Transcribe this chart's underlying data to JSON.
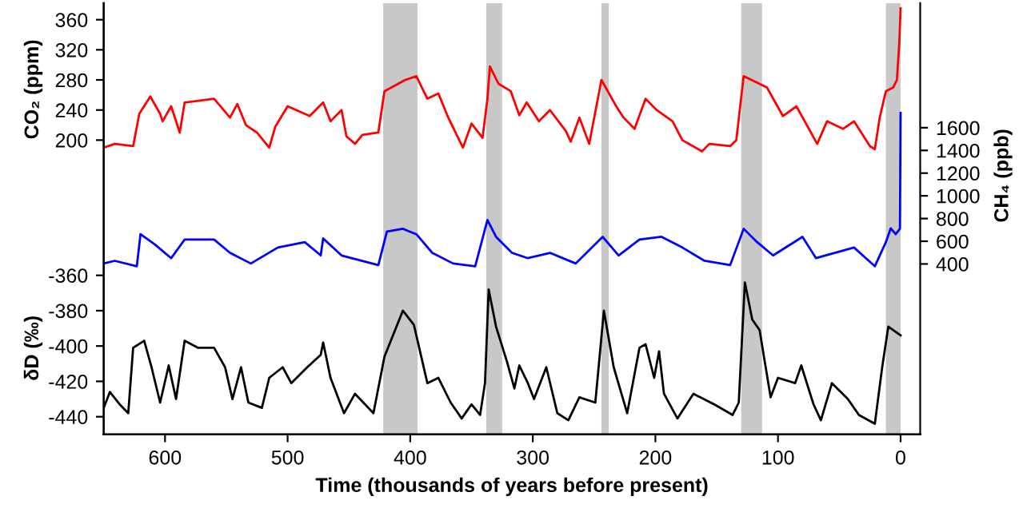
{
  "chart_data": {
    "type": "line",
    "xlabel": "Time (thousands of years before present)",
    "ylabel": "CO₂ (ppm)",
    "y2label": "CH₄ (ppb)",
    "y3label": "δD (‰)",
    "xlim": [
      650,
      -16
    ],
    "xticks": [
      600,
      500,
      400,
      300,
      200,
      100,
      0
    ],
    "ylim": [
      -191,
      382
    ],
    "yticks": [
      200,
      240,
      280,
      320,
      360
    ],
    "y2lim": [
      -1101,
      2697
    ],
    "y2ticks": [
      400,
      600,
      800,
      1000,
      1200,
      1400,
      1600
    ],
    "y3lim": [
      -450,
      -206
    ],
    "y3ticks": [
      -440,
      -420,
      -400,
      -380,
      -360
    ],
    "grid": false,
    "legend": false,
    "bands": [
      {
        "axis": "x",
        "from": 422,
        "to": 394,
        "color": "#c8c8c8"
      },
      {
        "axis": "x",
        "from": 338,
        "to": 325,
        "color": "#c8c8c8"
      },
      {
        "axis": "x",
        "from": 244,
        "to": 238,
        "color": "#c8c8c8"
      },
      {
        "axis": "x",
        "from": 130,
        "to": 113,
        "color": "#c8c8c8"
      },
      {
        "axis": "x",
        "from": 12,
        "to": 0,
        "color": "#c8c8c8"
      }
    ],
    "series": [
      {
        "color": "#ff0000",
        "axis": "y",
        "x": [
          650,
          641,
          626,
          621,
          612,
          604,
          602,
          595,
          588,
          584,
          560,
          547,
          541,
          534,
          525,
          515,
          510,
          500,
          482,
          471,
          465,
          456,
          452,
          445,
          439,
          426,
          421,
          404,
          395,
          386,
          377,
          369,
          360,
          357,
          350,
          341,
          337,
          335,
          328,
          318,
          311,
          305,
          295,
          286,
          273,
          269,
          262,
          254,
          244,
          232,
          226,
          217,
          208,
          199,
          186,
          178,
          162,
          156,
          139,
          134,
          128,
          109,
          96,
          85,
          68,
          60,
          47,
          38,
          25,
          21,
          17,
          12,
          6,
          3,
          1,
          0
        ],
        "values": [
          190,
          195,
          192,
          235,
          258,
          235,
          225,
          245,
          210,
          250,
          255,
          230,
          248,
          220,
          210,
          190,
          218,
          245,
          232,
          250,
          225,
          240,
          205,
          195,
          207,
          210,
          265,
          280,
          285,
          255,
          262,
          230,
          200,
          190,
          222,
          203,
          255,
          298,
          275,
          265,
          233,
          250,
          225,
          240,
          212,
          198,
          230,
          195,
          280,
          245,
          230,
          215,
          255,
          240,
          225,
          200,
          185,
          195,
          192,
          200,
          285,
          270,
          232,
          245,
          195,
          225,
          215,
          225,
          192,
          188,
          230,
          265,
          270,
          280,
          330,
          375
        ]
      },
      {
        "color": "#0000ff",
        "axis": "y2",
        "x": [
          650,
          641,
          623,
          620,
          608,
          595,
          584,
          560,
          547,
          530,
          508,
          486,
          473,
          471,
          456,
          426,
          419,
          406,
          395,
          382,
          365,
          347,
          337,
          330,
          317,
          304,
          286,
          265,
          243,
          230,
          213,
          195,
          178,
          160,
          139,
          128,
          117,
          104,
          80,
          69,
          38,
          21,
          12,
          8,
          4,
          0.5,
          0
        ],
        "values": [
          404,
          428,
          380,
          662,
          569,
          451,
          615,
          615,
          498,
          404,
          545,
          592,
          475,
          625,
          475,
          390,
          686,
          710,
          662,
          498,
          404,
          380,
          788,
          639,
          498,
          451,
          498,
          404,
          639,
          475,
          615,
          639,
          545,
          428,
          390,
          710,
          592,
          475,
          639,
          451,
          545,
          380,
          592,
          714,
          662,
          710,
          1730
        ]
      },
      {
        "color": "#000000",
        "axis": "y3",
        "x": [
          650,
          645,
          637,
          630,
          626,
          617,
          611,
          604,
          597,
          591,
          584,
          573,
          560,
          551,
          545,
          538,
          532,
          521,
          515,
          504,
          497,
          484,
          473,
          471,
          465,
          454,
          445,
          430,
          421,
          406,
          397,
          386,
          377,
          367,
          358,
          350,
          343,
          339,
          336,
          330,
          321,
          315,
          311,
          304,
          299,
          289,
          280,
          271,
          262,
          249,
          242,
          234,
          223,
          213,
          208,
          201,
          197,
          193,
          182,
          169,
          152,
          137,
          132,
          127,
          121,
          115,
          106,
          100,
          86,
          81,
          71,
          65,
          56,
          43,
          34,
          21,
          15,
          10,
          0
        ],
        "values": [
          -435,
          -426,
          -433,
          -438,
          -401,
          -397,
          -412,
          -432,
          -411,
          -430,
          -397,
          -401,
          -401,
          -412,
          -430,
          -412,
          -432,
          -435,
          -418,
          -412,
          -421,
          -412,
          -405,
          -398,
          -418,
          -438,
          -427,
          -438,
          -406,
          -380,
          -388,
          -421,
          -418,
          -432,
          -441,
          -433,
          -439,
          -421,
          -368,
          -389,
          -409,
          -424,
          -411,
          -421,
          -430,
          -412,
          -438,
          -442,
          -429,
          -432,
          -380,
          -412,
          -438,
          -401,
          -399,
          -418,
          -403,
          -427,
          -441,
          -427,
          -433,
          -439,
          -432,
          -364,
          -385,
          -391,
          -429,
          -418,
          -421,
          -411,
          -433,
          -442,
          -421,
          -430,
          -439,
          -444,
          -412,
          -389,
          -394
        ]
      }
    ]
  }
}
